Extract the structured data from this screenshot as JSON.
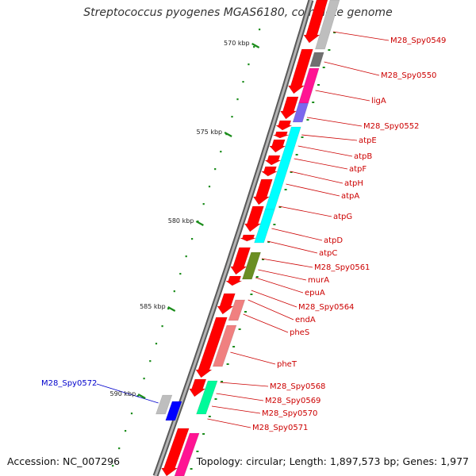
{
  "title": "Streptococcus pyogenes MGAS6180, complete genome",
  "accession": "Accession: NC_007296",
  "topology": "Topology: circular; Length: 1,897,573 bp; Genes: 1,977",
  "scale_labels": [
    "570 kbp",
    "575 kbp",
    "580 kbp",
    "585 kbp",
    "590 kbp"
  ],
  "gene_labels": [
    "M28_Spy0549",
    "M28_Spy0550",
    "ligA",
    "M28_Spy0552",
    "atpE",
    "atpB",
    "atpF",
    "atpH",
    "atpA",
    "atpG",
    "atpD",
    "atpC",
    "M28_Spy0561",
    "murA",
    "epuA",
    "M28_Spy0564",
    "endA",
    "pheS",
    "pheT",
    "M28_Spy0568",
    "M28_Spy0569",
    "M28_Spy0570",
    "M28_Spy0571"
  ],
  "left_label": "M28_Spy0572",
  "colors": {
    "backbone": "#8c8c8c",
    "forward_gene": "#ff0000",
    "reverse_gene": "#0000ff",
    "gene_label": "#cc0000",
    "left_label": "#0000cc",
    "tick": "#1a8c1a",
    "cog_cyan": "#00ffff",
    "cog_pink": "#ff1493",
    "cog_salmon": "#f08080",
    "cog_gray": "#bebebe",
    "cog_olive": "#6b8e23",
    "cog_green": "#00fa9a",
    "cog_purple": "#7b68ee"
  }
}
